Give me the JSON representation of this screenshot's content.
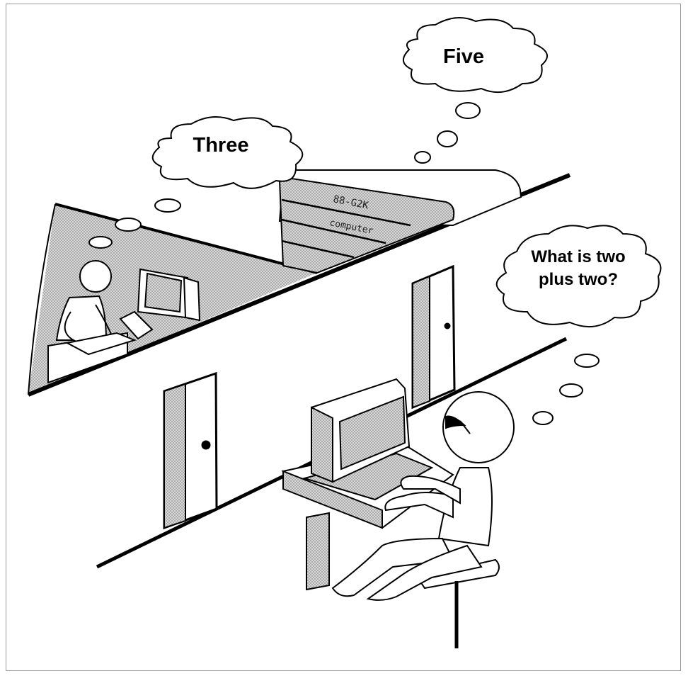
{
  "thoughts": {
    "human_hidden": "Three",
    "computer": "Five",
    "interrogator_line1": "What is two",
    "interrogator_line2": "plus two?"
  },
  "computer_labels": {
    "model": "88-G2K",
    "kind": "computer"
  },
  "colors": {
    "ink": "#000000",
    "shade": "#bdbdbd",
    "paper": "#ffffff"
  }
}
